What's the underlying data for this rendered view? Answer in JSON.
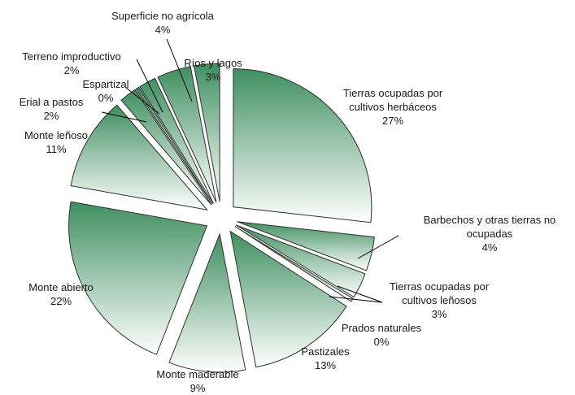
{
  "chart_data": {
    "type": "pie",
    "title": "",
    "exploded": true,
    "fill_gradient": [
      "#3f8f60",
      "#ffffff"
    ],
    "slices": [
      {
        "label": "Tierras ocupadas por cultivos herbáceos",
        "label_lines": [
          "Tierras ocupadas por",
          "cultivos herbáceos"
        ],
        "value": 27,
        "pct": "27%"
      },
      {
        "label": "Barbechos y otras tierras no ocupadas",
        "label_lines": [
          "Barbechos y otras tierras no",
          "ocupadas"
        ],
        "value": 4,
        "pct": "4%"
      },
      {
        "label": "Tierras ocupadas por cultivos leñosos",
        "label_lines": [
          "Tierras ocupadas por",
          "cultivos leñosos"
        ],
        "value": 3,
        "pct": "3%"
      },
      {
        "label": "Prados naturales",
        "label_lines": [
          "Prados naturales"
        ],
        "value": 0.4,
        "pct": "0%"
      },
      {
        "label": "Pastizales",
        "label_lines": [
          "Pastizales"
        ],
        "value": 13,
        "pct": "13%"
      },
      {
        "label": "Monte maderable",
        "label_lines": [
          "Monte maderable"
        ],
        "value": 9,
        "pct": "9%"
      },
      {
        "label": "Monte abierto",
        "label_lines": [
          "Monte abierto"
        ],
        "value": 22,
        "pct": "22%"
      },
      {
        "label": "Monte leñoso",
        "label_lines": [
          "Monte leñoso"
        ],
        "value": 11,
        "pct": "11%"
      },
      {
        "label": "Erial a pastos",
        "label_lines": [
          "Erial a pastos"
        ],
        "value": 2,
        "pct": "2%"
      },
      {
        "label": "Espartizal",
        "label_lines": [
          "Espartizal"
        ],
        "value": 0.4,
        "pct": "0%"
      },
      {
        "label": "Terreno improductivo",
        "label_lines": [
          "Terreno improductivo"
        ],
        "value": 2,
        "pct": "2%"
      },
      {
        "label": "Superficie no agrícola",
        "label_lines": [
          "Superficie no agrícola"
        ],
        "value": 4,
        "pct": "4%"
      },
      {
        "label": "Ríos y lagos",
        "label_lines": [
          "Ríos y lagos"
        ],
        "value": 3,
        "pct": "3%"
      }
    ]
  }
}
